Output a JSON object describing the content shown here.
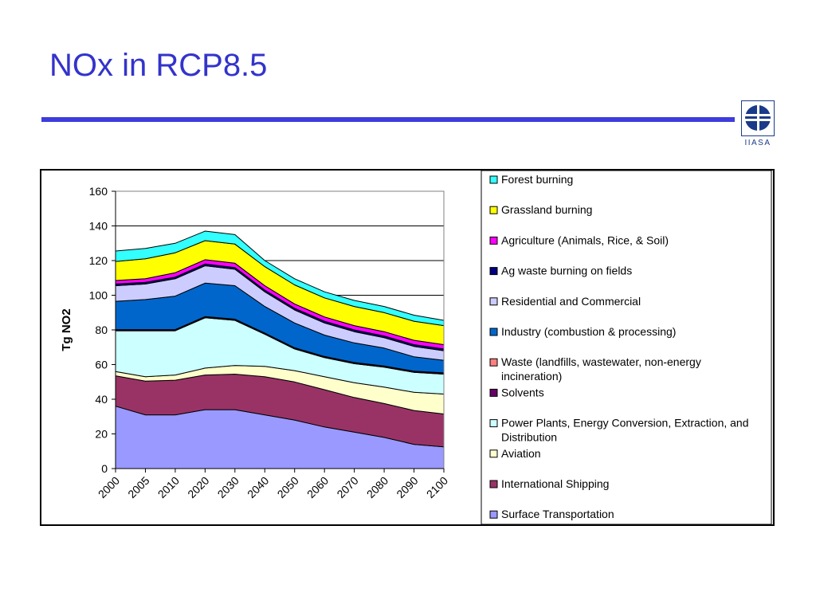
{
  "slide": {
    "title": "NOx in RCP8.5"
  },
  "logo": {
    "text": "IIASA"
  },
  "chart_data": {
    "type": "area",
    "stacked": true,
    "categories": [
      "2000",
      "2005",
      "2010",
      "2020",
      "2030",
      "2040",
      "2050",
      "2060",
      "2070",
      "2080",
      "2090",
      "2100"
    ],
    "ylabel": "Tg NO2",
    "xlabel": "",
    "ylim": [
      0,
      160
    ],
    "yticks": [
      0,
      20,
      40,
      60,
      80,
      100,
      120,
      140,
      160
    ],
    "grid": "horizontal",
    "legend_position": "right",
    "series": [
      {
        "name": "Surface Transportation",
        "color": "#9999ff",
        "values": [
          36,
          31,
          31,
          34,
          34,
          31,
          28,
          24,
          21,
          18,
          14,
          12.5
        ]
      },
      {
        "name": "International Shipping",
        "color": "#993366",
        "values": [
          17.5,
          19.5,
          20,
          20,
          20.5,
          22,
          22,
          21.5,
          20,
          19.5,
          19.5,
          19
        ]
      },
      {
        "name": "Aviation",
        "color": "#ffffcc",
        "values": [
          2.5,
          2.5,
          3,
          4,
          5,
          6,
          6.5,
          7.5,
          8.5,
          9.5,
          10.5,
          11.5
        ]
      },
      {
        "name": "Power Plants, Energy Conversion, Extraction, and Distribution",
        "color": "#ccffff",
        "values": [
          23.5,
          26.5,
          25.5,
          29,
          26,
          18.5,
          12.5,
          11,
          11,
          11.5,
          11.5,
          11.5
        ]
      },
      {
        "name": "Solvents",
        "color": "#660066",
        "values": [
          0.5,
          0.5,
          0.5,
          0.5,
          0.5,
          0.5,
          0.5,
          0.5,
          0.5,
          0.5,
          0.5,
          0.5
        ]
      },
      {
        "name": "Waste (landfills, wastewater, non-energy incineration)",
        "color": "#ff8080",
        "values": [
          0.2,
          0.2,
          0.2,
          0.2,
          0.2,
          0.2,
          0.2,
          0.2,
          0.2,
          0.2,
          0.2,
          0.2
        ]
      },
      {
        "name": "Industry (combustion & processing)",
        "color": "#0066cc",
        "values": [
          16.3,
          17.3,
          19.3,
          19.3,
          19.3,
          15.3,
          14.3,
          12.3,
          11.3,
          10.3,
          8.3,
          7.3
        ]
      },
      {
        "name": "Residential and Commercial",
        "color": "#ccccff",
        "values": [
          9,
          9,
          10,
          10,
          9.5,
          8.5,
          7.5,
          7,
          6.5,
          6,
          6,
          5.5
        ]
      },
      {
        "name": "Ag waste burning on fields",
        "color": "#000080",
        "values": [
          1,
          1,
          1,
          1,
          1,
          1,
          1,
          1,
          1,
          1,
          1,
          1
        ]
      },
      {
        "name": "Agriculture (Animals, Rice, & Soil)",
        "color": "#ff00ff",
        "values": [
          2,
          2,
          2.5,
          2.5,
          2.5,
          2.5,
          2.5,
          2.5,
          2.5,
          2.5,
          2.5,
          2.5
        ]
      },
      {
        "name": "Grassland burning",
        "color": "#ffff00",
        "values": [
          11,
          11.5,
          11.5,
          11,
          11,
          11,
          11,
          11,
          11,
          11,
          11,
          11
        ]
      },
      {
        "name": "Forest burning",
        "color": "#33ffff",
        "values": [
          6,
          6,
          5.5,
          5.5,
          5.5,
          3.5,
          3.5,
          3.5,
          3.5,
          3.5,
          3.5,
          3
        ]
      }
    ]
  }
}
